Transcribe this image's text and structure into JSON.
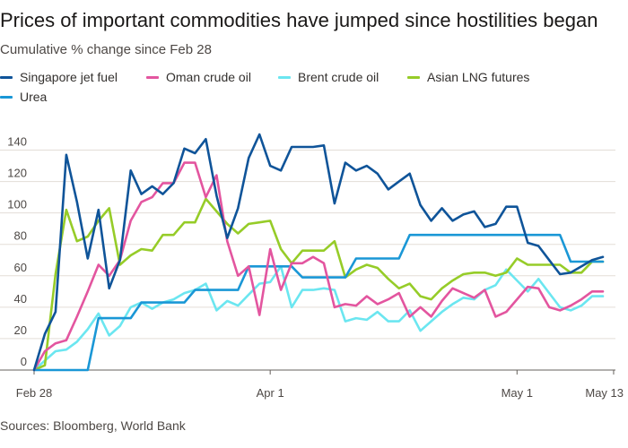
{
  "title": "Prices of important commodities have jumped since hostilities began",
  "subtitle": "Cumulative % change since Feb 28",
  "source": "Sources: Bloomberg, World Bank",
  "chart_data": {
    "type": "line",
    "x_tick_labels": [
      "Feb 28",
      "Apr 1",
      "May 1",
      "May 13"
    ],
    "y_ticks": [
      0,
      20,
      40,
      60,
      80,
      100,
      120,
      140
    ],
    "ylim": [
      0,
      150
    ],
    "grid": "horizontal",
    "legend_position": "top-left",
    "series": [
      {
        "name": "Singapore jet fuel",
        "color": "#0f5499",
        "values": [
          0,
          23,
          37,
          137,
          107,
          71,
          102,
          52,
          70,
          127,
          112,
          117,
          112,
          119,
          141,
          138,
          147,
          111,
          84,
          103,
          135,
          150,
          130,
          127,
          142,
          142,
          142,
          143,
          106,
          132,
          127,
          130,
          125,
          115,
          120,
          125,
          105,
          95,
          103,
          95,
          99,
          101,
          91,
          93,
          104,
          104,
          81,
          79,
          70,
          61,
          62,
          66,
          70,
          72
        ]
      },
      {
        "name": "Oman crude oil",
        "color": "#e3559f",
        "values": [
          0,
          12,
          17,
          19,
          34,
          50,
          67,
          60,
          70,
          95,
          107,
          110,
          119,
          119,
          132,
          132,
          110,
          124,
          82,
          60,
          66,
          35,
          77,
          51,
          68,
          68,
          72,
          68,
          40,
          42,
          41,
          47,
          42,
          45,
          49,
          34,
          40,
          34,
          44,
          52,
          49,
          46,
          51,
          34,
          37,
          45,
          53,
          52,
          40,
          38,
          41,
          45,
          50,
          50
        ]
      },
      {
        "name": "Brent crude oil",
        "color": "#6be6f0",
        "values": [
          0,
          6,
          12,
          13,
          18,
          26,
          36,
          22,
          28,
          40,
          43,
          39,
          43,
          45,
          49,
          51,
          55,
          38,
          44,
          41,
          48,
          55,
          56,
          66,
          40,
          51,
          51,
          52,
          51,
          31,
          33,
          32,
          37,
          31,
          31,
          38,
          25,
          31,
          37,
          42,
          46,
          45,
          51,
          54,
          64,
          57,
          50,
          58,
          49,
          40,
          38,
          41,
          47,
          47
        ]
      },
      {
        "name": "Asian LNG futures",
        "color": "#96cc28",
        "values": [
          0,
          3,
          61,
          102,
          82,
          85,
          95,
          103,
          67,
          73,
          77,
          76,
          86,
          86,
          94,
          94,
          109,
          101,
          93,
          87,
          93,
          94,
          95,
          77,
          68,
          76,
          76,
          76,
          82,
          59,
          64,
          67,
          65,
          58,
          52,
          55,
          47,
          45,
          52,
          57,
          61,
          62,
          62,
          60,
          62,
          71,
          67,
          67,
          67,
          67,
          62,
          62,
          69,
          69
        ]
      },
      {
        "name": "Urea",
        "color": "#1a97d6",
        "values": [
          0,
          0,
          0,
          0,
          0,
          0,
          33,
          33,
          33,
          33,
          43,
          43,
          43,
          43,
          43,
          51,
          51,
          51,
          51,
          51,
          66,
          66,
          66,
          66,
          66,
          59,
          59,
          59,
          59,
          59,
          71,
          71,
          71,
          71,
          71,
          86,
          86,
          86,
          86,
          86,
          86,
          86,
          86,
          86,
          86,
          86,
          86,
          86,
          86,
          86,
          69,
          69,
          69,
          69
        ]
      }
    ],
    "x_tick_positions": [
      0,
      22,
      45,
      54
    ]
  }
}
